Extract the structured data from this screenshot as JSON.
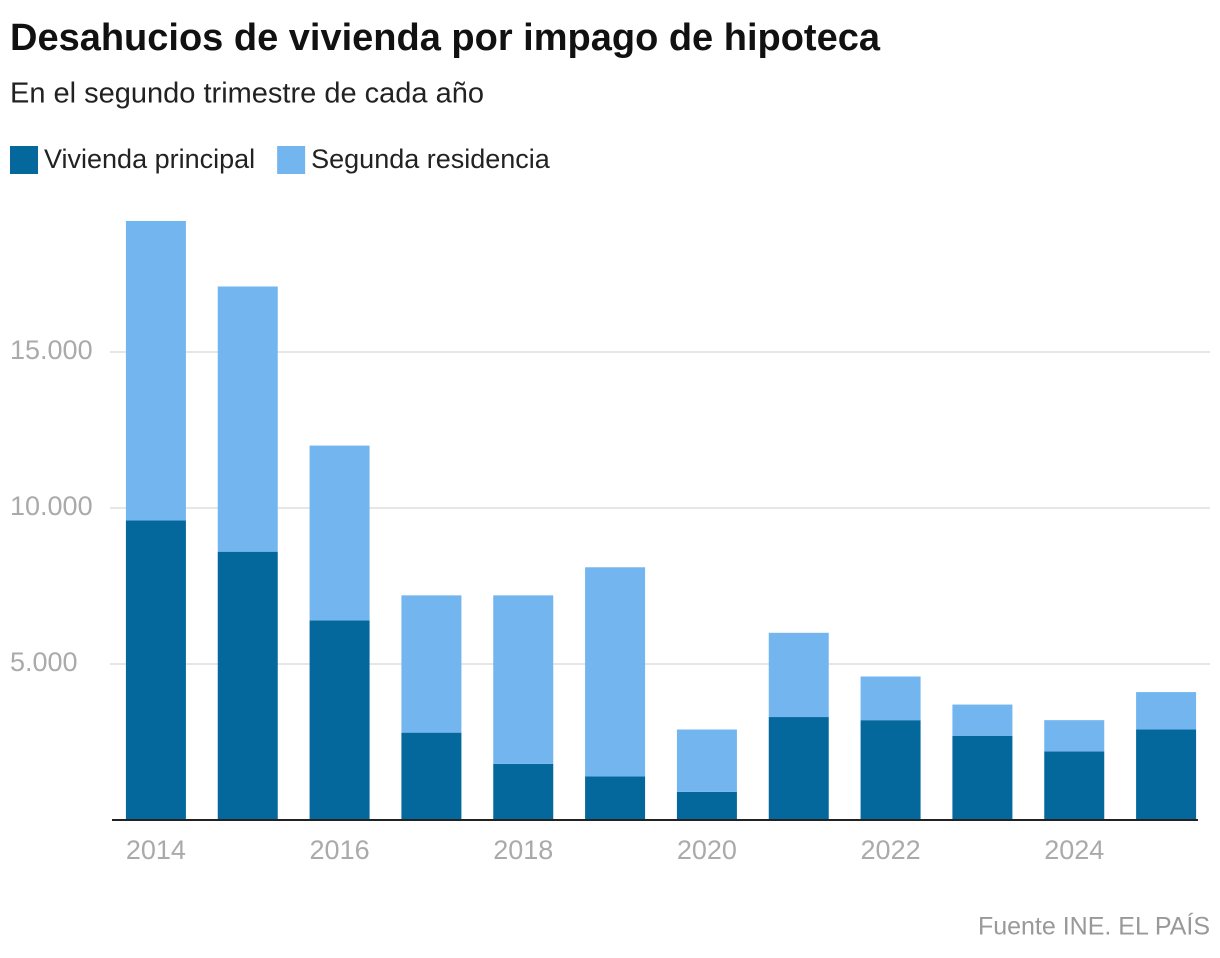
{
  "chart_data": {
    "type": "stacked_bar",
    "title": "Desahucios de vivienda por impago de hipoteca",
    "subtitle": "En el segundo trimestre de cada año",
    "source": "Fuente INE. EL PAÍS",
    "categories": [
      "2014",
      null,
      "2016",
      null,
      "2018",
      null,
      "2020",
      null,
      "2022",
      null,
      "2024",
      null
    ],
    "series": [
      {
        "name": "Vivienda principal",
        "color": "#05689c",
        "values": [
          9600,
          8600,
          6400,
          2800,
          1800,
          1400,
          900,
          3300,
          3200,
          2700,
          2200,
          2900
        ]
      },
      {
        "name": "Segunda residencia",
        "color": "#73b6ef",
        "values": [
          9600,
          8500,
          5600,
          4400,
          5400,
          6700,
          2000,
          2700,
          1400,
          1000,
          1000,
          1200
        ]
      }
    ],
    "ylim": [
      0,
      20000
    ],
    "yticks": [
      {
        "value": 5000,
        "label": "5.000"
      },
      {
        "value": 10000,
        "label": "10.000"
      },
      {
        "value": 15000,
        "label": "15.000"
      }
    ],
    "grid": true
  }
}
